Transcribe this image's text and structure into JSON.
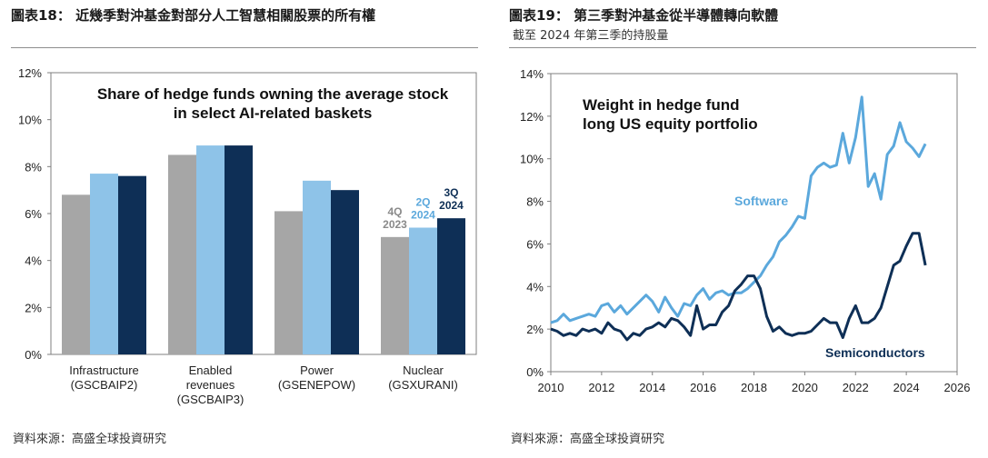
{
  "left": {
    "title": "圖表18： 近幾季對沖基金對部分人工智慧相關股票的所有權",
    "source": "資料來源：高盛全球投資研究",
    "chart_data": {
      "type": "bar",
      "title": "Share of hedge funds owning the average stock in select AI-related baskets",
      "title_lines": [
        "Share of hedge funds owning the average stock",
        "in select AI-related baskets"
      ],
      "ylim": [
        0,
        12
      ],
      "y_ticks": [
        0,
        2,
        4,
        6,
        8,
        10,
        12
      ],
      "y_tick_labels": [
        "0%",
        "2%",
        "4%",
        "6%",
        "8%",
        "10%",
        "12%"
      ],
      "categories": [
        "Infrastructure (GSCBAIP2)",
        "Enabled revenues (GSCBAIP3)",
        "Power (GSENEPOW)",
        "Nuclear (GSXURANI)"
      ],
      "category_lines": [
        [
          "Infrastructure",
          "(GSCBAIP2)"
        ],
        [
          "Enabled",
          "revenues",
          "(GSCBAIP3)"
        ],
        [
          "Power",
          "(GSENEPOW)"
        ],
        [
          "Nuclear",
          "(GSXURANI)"
        ]
      ],
      "series": [
        {
          "name": "4Q 2023",
          "label_lines": [
            "4Q",
            "2023"
          ],
          "color": "#a6a6a6",
          "values": [
            6.8,
            8.5,
            6.1,
            5.0
          ]
        },
        {
          "name": "2Q 2024",
          "label_lines": [
            "2Q",
            "2024"
          ],
          "color": "#8ec3e8",
          "values": [
            7.7,
            8.9,
            7.4,
            5.4
          ]
        },
        {
          "name": "3Q 2024",
          "label_lines": [
            "3Q",
            "2024"
          ],
          "color": "#0e2f56",
          "values": [
            7.6,
            8.9,
            7.0,
            5.8
          ]
        }
      ],
      "grid": false,
      "legend": "inline labels above Nuclear bars"
    }
  },
  "right": {
    "title": "圖表19： 第三季對沖基金從半導體轉向軟體",
    "subtitle": "截至 2024 年第三季的持股量",
    "source": "資料來源：高盛全球投資研究",
    "chart_data": {
      "type": "line",
      "title": "Weight in hedge fund long US equity portfolio",
      "title_lines": [
        "Weight in hedge fund",
        "long US equity portfolio"
      ],
      "xlim": [
        2010,
        2026
      ],
      "x_ticks": [
        2010,
        2012,
        2014,
        2016,
        2018,
        2020,
        2022,
        2024,
        2026
      ],
      "ylim": [
        0,
        14
      ],
      "y_ticks": [
        0,
        2,
        4,
        6,
        8,
        10,
        12,
        14
      ],
      "y_tick_labels": [
        "0%",
        "2%",
        "4%",
        "6%",
        "8%",
        "10%",
        "12%",
        "14%"
      ],
      "grid": false,
      "legend": "inline labels",
      "series": [
        {
          "name": "Software",
          "color": "#5ba8dc",
          "x": [
            2010.0,
            2010.25,
            2010.5,
            2010.75,
            2011.0,
            2011.25,
            2011.5,
            2011.75,
            2012.0,
            2012.25,
            2012.5,
            2012.75,
            2013.0,
            2013.25,
            2013.5,
            2013.75,
            2014.0,
            2014.25,
            2014.5,
            2014.75,
            2015.0,
            2015.25,
            2015.5,
            2015.75,
            2016.0,
            2016.25,
            2016.5,
            2016.75,
            2017.0,
            2017.25,
            2017.5,
            2017.75,
            2018.0,
            2018.25,
            2018.5,
            2018.75,
            2019.0,
            2019.25,
            2019.5,
            2019.75,
            2020.0,
            2020.25,
            2020.5,
            2020.75,
            2021.0,
            2021.25,
            2021.5,
            2021.75,
            2022.0,
            2022.25,
            2022.5,
            2022.75,
            2023.0,
            2023.25,
            2023.5,
            2023.75,
            2024.0,
            2024.25,
            2024.5,
            2024.75
          ],
          "values": [
            2.3,
            2.4,
            2.7,
            2.4,
            2.5,
            2.6,
            2.7,
            2.6,
            3.1,
            3.2,
            2.8,
            3.1,
            2.7,
            3.0,
            3.3,
            3.6,
            3.3,
            2.8,
            3.5,
            3.0,
            2.6,
            3.2,
            3.1,
            3.6,
            3.9,
            3.4,
            3.7,
            3.8,
            3.6,
            3.7,
            3.7,
            3.9,
            4.2,
            4.5,
            5.0,
            5.4,
            6.1,
            6.4,
            6.8,
            7.3,
            7.2,
            9.2,
            9.6,
            9.8,
            9.6,
            9.7,
            11.2,
            9.8,
            11.0,
            12.9,
            8.7,
            9.3,
            8.1,
            10.2,
            10.6,
            11.7,
            10.8,
            10.5,
            10.1,
            10.7
          ]
        },
        {
          "name": "Semiconductors",
          "color": "#0e2f56",
          "x": [
            2010.0,
            2010.25,
            2010.5,
            2010.75,
            2011.0,
            2011.25,
            2011.5,
            2011.75,
            2012.0,
            2012.25,
            2012.5,
            2012.75,
            2013.0,
            2013.25,
            2013.5,
            2013.75,
            2014.0,
            2014.25,
            2014.5,
            2014.75,
            2015.0,
            2015.25,
            2015.5,
            2015.75,
            2016.0,
            2016.25,
            2016.5,
            2016.75,
            2017.0,
            2017.25,
            2017.5,
            2017.75,
            2018.0,
            2018.25,
            2018.5,
            2018.75,
            2019.0,
            2019.25,
            2019.5,
            2019.75,
            2020.0,
            2020.25,
            2020.5,
            2020.75,
            2021.0,
            2021.25,
            2021.5,
            2021.75,
            2022.0,
            2022.25,
            2022.5,
            2022.75,
            2023.0,
            2023.25,
            2023.5,
            2023.75,
            2024.0,
            2024.25,
            2024.5,
            2024.75
          ],
          "values": [
            2.0,
            1.9,
            1.7,
            1.8,
            1.7,
            2.0,
            1.9,
            2.0,
            1.8,
            2.3,
            2.0,
            1.9,
            1.5,
            1.8,
            1.7,
            2.0,
            2.1,
            2.3,
            2.1,
            2.5,
            2.4,
            2.1,
            1.7,
            3.1,
            2.0,
            2.2,
            2.2,
            2.8,
            3.1,
            3.8,
            4.1,
            4.5,
            4.5,
            3.9,
            2.6,
            1.9,
            2.1,
            1.8,
            1.7,
            1.8,
            1.8,
            1.9,
            2.2,
            2.5,
            2.3,
            2.3,
            1.6,
            2.5,
            3.1,
            2.3,
            2.3,
            2.5,
            3.0,
            4.0,
            5.0,
            5.2,
            5.9,
            6.5,
            6.5,
            5.0
          ]
        }
      ]
    }
  }
}
